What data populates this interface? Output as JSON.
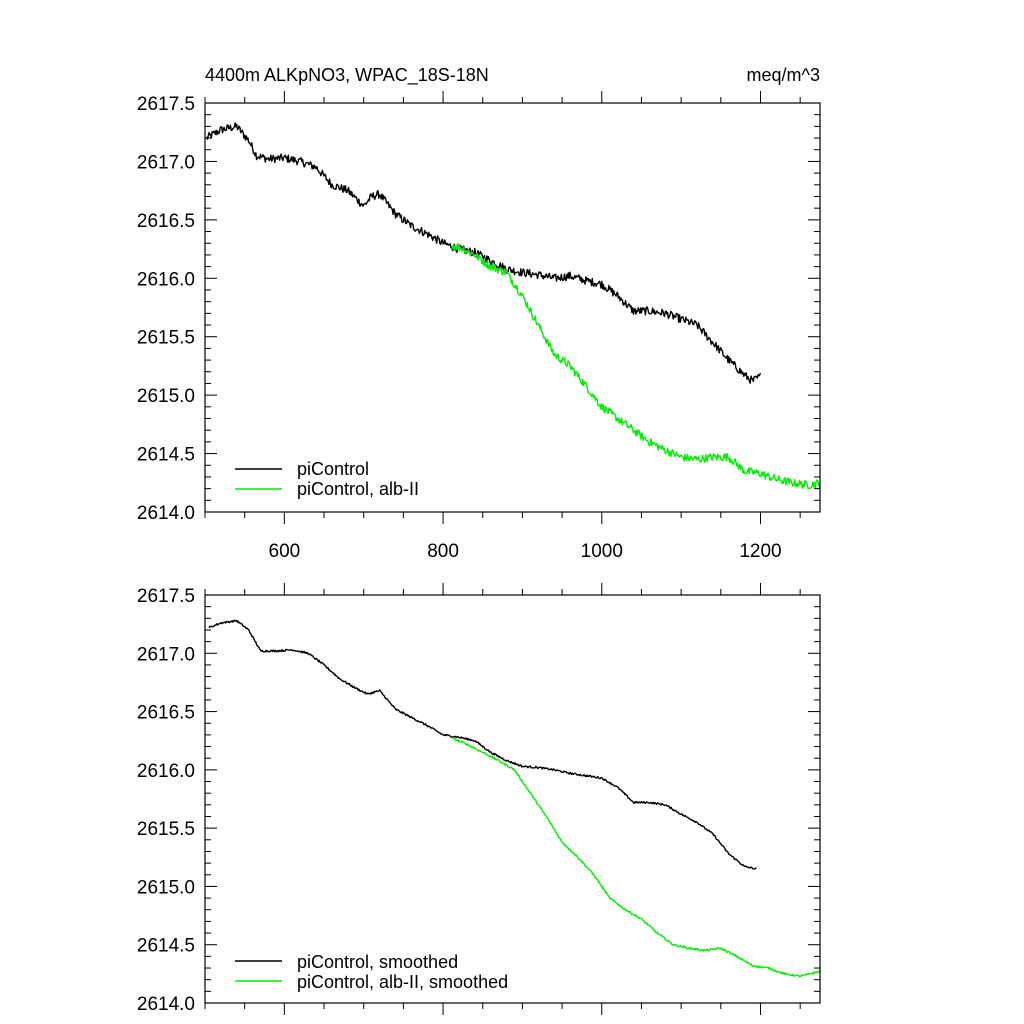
{
  "colors": {
    "piControl": "#000000",
    "alb": "#00ee00",
    "axis": "#000000",
    "background": "#ffffff"
  },
  "chart_data": [
    {
      "type": "line",
      "title_left": "4400m ALKpNO3, WPAC_18S-18N",
      "title_right": "meq/m^3",
      "xlim": [
        500,
        1275
      ],
      "ylim": [
        2614.0,
        2617.5
      ],
      "x_ticks": [
        600,
        800,
        1000,
        1200
      ],
      "x_tick_labels": [
        "600",
        "800",
        "1000",
        "1200"
      ],
      "x_tick_labels_shown": true,
      "y_ticks": [
        2614.0,
        2614.5,
        2615.0,
        2615.5,
        2616.0,
        2616.5,
        2617.0,
        2617.5
      ],
      "y_tick_labels": [
        "2614.0",
        "2614.5",
        "2615.0",
        "2615.5",
        "2616.0",
        "2616.5",
        "2617.0",
        "2617.5"
      ],
      "legend_placement": "bottom-left",
      "grid": false,
      "noise": 0.035,
      "series": [
        {
          "name": "piControl",
          "color_key": "piControl",
          "x": [
            502,
            520,
            540,
            555,
            565,
            580,
            600,
            620,
            640,
            660,
            680,
            700,
            710,
            720,
            740,
            760,
            780,
            800,
            820,
            840,
            860,
            880,
            900,
            920,
            940,
            960,
            980,
            1000,
            1020,
            1040,
            1060,
            1080,
            1100,
            1120,
            1140,
            1160,
            1180,
            1190,
            1200
          ],
          "y": [
            2617.2,
            2617.27,
            2617.3,
            2617.18,
            2617.05,
            2617.02,
            2617.03,
            2617.0,
            2616.95,
            2616.8,
            2616.75,
            2616.62,
            2616.7,
            2616.72,
            2616.55,
            2616.45,
            2616.38,
            2616.3,
            2616.25,
            2616.22,
            2616.15,
            2616.08,
            2616.05,
            2616.03,
            2616.0,
            2616.02,
            2615.98,
            2615.95,
            2615.85,
            2615.72,
            2615.72,
            2615.7,
            2615.65,
            2615.6,
            2615.45,
            2615.3,
            2615.17,
            2615.12,
            2615.16
          ]
        },
        {
          "name": "piControl, alb-II",
          "color_key": "alb",
          "x": [
            810,
            820,
            840,
            860,
            880,
            900,
            920,
            940,
            960,
            980,
            1000,
            1020,
            1040,
            1060,
            1080,
            1100,
            1120,
            1140,
            1160,
            1180,
            1200,
            1220,
            1240,
            1260,
            1275
          ],
          "y": [
            2616.28,
            2616.27,
            2616.2,
            2616.1,
            2616.05,
            2615.85,
            2615.6,
            2615.35,
            2615.25,
            2615.08,
            2614.9,
            2614.8,
            2614.7,
            2614.6,
            2614.53,
            2614.47,
            2614.45,
            2614.47,
            2614.47,
            2614.35,
            2614.33,
            2614.28,
            2614.25,
            2614.23,
            2614.25
          ]
        }
      ]
    },
    {
      "type": "line",
      "xlim": [
        500,
        1275
      ],
      "ylim": [
        2614.0,
        2617.5
      ],
      "x_ticks": [
        600,
        800,
        1000,
        1200
      ],
      "x_tick_labels_shown": false,
      "y_ticks": [
        2614.0,
        2614.5,
        2615.0,
        2615.5,
        2616.0,
        2616.5,
        2617.0,
        2617.5
      ],
      "y_tick_labels": [
        "2614.0",
        "2614.5",
        "2615.0",
        "2615.5",
        "2616.0",
        "2616.5",
        "2617.0",
        "2617.5"
      ],
      "legend_placement": "bottom-left",
      "grid": false,
      "noise": 0.008,
      "series": [
        {
          "name": "piControl, smoothed",
          "color_key": "piControl",
          "x": [
            505,
            520,
            540,
            555,
            570,
            590,
            610,
            630,
            650,
            670,
            690,
            705,
            720,
            740,
            760,
            780,
            800,
            820,
            840,
            860,
            880,
            900,
            920,
            940,
            960,
            980,
            1000,
            1020,
            1040,
            1060,
            1080,
            1100,
            1120,
            1140,
            1160,
            1180,
            1195
          ],
          "y": [
            2617.22,
            2617.26,
            2617.28,
            2617.2,
            2617.02,
            2617.02,
            2617.03,
            2617.0,
            2616.9,
            2616.78,
            2616.7,
            2616.65,
            2616.68,
            2616.52,
            2616.45,
            2616.38,
            2616.3,
            2616.28,
            2616.25,
            2616.15,
            2616.08,
            2616.03,
            2616.02,
            2616.0,
            2615.97,
            2615.95,
            2615.93,
            2615.85,
            2615.72,
            2615.72,
            2615.7,
            2615.62,
            2615.55,
            2615.45,
            2615.28,
            2615.17,
            2615.15
          ]
        },
        {
          "name": "piControl, alb-II, smoothed",
          "color_key": "alb",
          "x": [
            812,
            830,
            850,
            870,
            890,
            910,
            930,
            950,
            970,
            990,
            1010,
            1030,
            1050,
            1070,
            1090,
            1110,
            1130,
            1150,
            1170,
            1190,
            1210,
            1230,
            1250,
            1275
          ],
          "y": [
            2616.27,
            2616.22,
            2616.15,
            2616.08,
            2616.0,
            2615.8,
            2615.6,
            2615.38,
            2615.25,
            2615.1,
            2614.9,
            2614.8,
            2614.72,
            2614.6,
            2614.5,
            2614.47,
            2614.45,
            2614.47,
            2614.4,
            2614.32,
            2614.3,
            2614.25,
            2614.23,
            2614.27
          ]
        }
      ]
    }
  ]
}
